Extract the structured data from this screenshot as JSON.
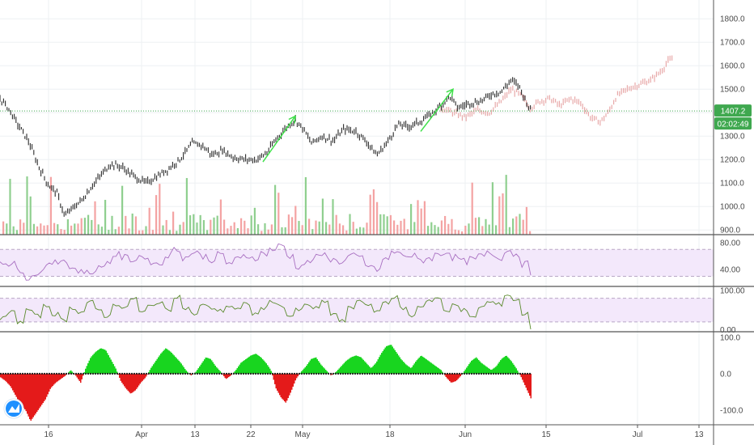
{
  "chart_data": [
    {
      "type": "candlestick",
      "panel": "price",
      "y_ticks": [
        "900.0",
        "1000.0",
        "1100.0",
        "1200.0",
        "1300.0",
        "1400.0",
        "1500.0",
        "1600.0",
        "1700.0",
        "1800.0"
      ],
      "ylim": [
        880,
        1880
      ],
      "last_price_label": "1407.2",
      "countdown_label": "02:02:49",
      "last_price": 1407.2,
      "price_path": [
        [
          0,
          1460
        ],
        [
          10,
          1420
        ],
        [
          22,
          1350
        ],
        [
          35,
          1280
        ],
        [
          48,
          1170
        ],
        [
          60,
          1090
        ],
        [
          70,
          1060
        ],
        [
          80,
          960
        ],
        [
          92,
          1000
        ],
        [
          102,
          1030
        ],
        [
          112,
          1080
        ],
        [
          124,
          1130
        ],
        [
          136,
          1180
        ],
        [
          150,
          1170
        ],
        [
          165,
          1130
        ],
        [
          180,
          1100
        ],
        [
          195,
          1130
        ],
        [
          208,
          1160
        ],
        [
          222,
          1200
        ],
        [
          238,
          1270
        ],
        [
          250,
          1260
        ],
        [
          262,
          1220
        ],
        [
          275,
          1240
        ],
        [
          288,
          1210
        ],
        [
          302,
          1200
        ],
        [
          318,
          1200
        ],
        [
          330,
          1230
        ],
        [
          342,
          1290
        ],
        [
          355,
          1340
        ],
        [
          365,
          1370
        ],
        [
          375,
          1330
        ],
        [
          385,
          1270
        ],
        [
          398,
          1300
        ],
        [
          412,
          1280
        ],
        [
          425,
          1330
        ],
        [
          440,
          1320
        ],
        [
          452,
          1280
        ],
        [
          466,
          1220
        ],
        [
          478,
          1270
        ],
        [
          492,
          1350
        ],
        [
          505,
          1340
        ],
        [
          518,
          1360
        ],
        [
          532,
          1390
        ],
        [
          545,
          1430
        ],
        [
          556,
          1470
        ],
        [
          566,
          1420
        ],
        [
          580,
          1440
        ],
        [
          595,
          1450
        ],
        [
          608,
          1480
        ],
        [
          620,
          1490
        ],
        [
          632,
          1540
        ],
        [
          642,
          1510
        ],
        [
          650,
          1450
        ],
        [
          656,
          1410
        ]
      ],
      "projection_path": [
        [
          545,
          1420
        ],
        [
          560,
          1400
        ],
        [
          575,
          1380
        ],
        [
          590,
          1410
        ],
        [
          605,
          1400
        ],
        [
          620,
          1450
        ],
        [
          632,
          1500
        ],
        [
          645,
          1470
        ],
        [
          655,
          1420
        ],
        [
          668,
          1450
        ],
        [
          680,
          1460
        ],
        [
          692,
          1430
        ],
        [
          705,
          1460
        ],
        [
          718,
          1440
        ],
        [
          730,
          1380
        ],
        [
          742,
          1360
        ],
        [
          752,
          1400
        ],
        [
          762,
          1470
        ],
        [
          775,
          1500
        ],
        [
          790,
          1520
        ],
        [
          805,
          1540
        ],
        [
          818,
          1580
        ],
        [
          826,
          1620
        ],
        [
          832,
          1630
        ]
      ],
      "trend_arrows": [
        {
          "from": [
            325,
            1190
          ],
          "to": [
            365,
            1385
          ]
        },
        {
          "from": [
            520,
            1320
          ],
          "to": [
            560,
            1500
          ]
        }
      ]
    },
    {
      "type": "bar",
      "panel": "volume",
      "note": "volume bars colored by candle direction"
    },
    {
      "type": "line",
      "panel": "rsi",
      "y_ticks": [
        "40.00",
        "80.00"
      ],
      "ylim": [
        15,
        92
      ],
      "band": [
        30,
        70
      ],
      "series": [
        {
          "color": "#a86fc1",
          "values": [
            52,
            48,
            40,
            28,
            35,
            45,
            50,
            55,
            42,
            38,
            35,
            42,
            50,
            62,
            58,
            55,
            60,
            52,
            48,
            62,
            70,
            58,
            66,
            60,
            55,
            62,
            50,
            55,
            60,
            58,
            64,
            70,
            75,
            60,
            45,
            50,
            58,
            62,
            54,
            52,
            60,
            58,
            46,
            40,
            55,
            66,
            62,
            60,
            54,
            57,
            62,
            66,
            58,
            52,
            55,
            60,
            64,
            58,
            68,
            63,
            48,
            35
          ]
        }
      ]
    },
    {
      "type": "line",
      "panel": "oscillator",
      "y_ticks": [
        "0.00",
        "100.00"
      ],
      "ylim": [
        -5,
        110
      ],
      "band": [
        20,
        80
      ],
      "series": [
        {
          "color": "#5a8a2c",
          "values": [
            30,
            45,
            20,
            50,
            35,
            60,
            40,
            25,
            55,
            45,
            70,
            50,
            35,
            65,
            55,
            80,
            45,
            60,
            70,
            50,
            85,
            55,
            40,
            62,
            55,
            48,
            60,
            52,
            65,
            40,
            55,
            72,
            60,
            35,
            50,
            62,
            55,
            70,
            40,
            22,
            55,
            75,
            60,
            48,
            70,
            82,
            55,
            35,
            60,
            75,
            80,
            45,
            65,
            50,
            30,
            58,
            70,
            64,
            88,
            75,
            40,
            5
          ]
        }
      ]
    },
    {
      "type": "bar",
      "panel": "histogram",
      "y_ticks": [
        "-100.0",
        "0.0",
        "100.0"
      ],
      "ylim": [
        -140,
        115
      ],
      "values": [
        -10,
        -20,
        -35,
        -60,
        -85,
        -100,
        -130,
        -110,
        -90,
        -70,
        -40,
        -25,
        -15,
        -5,
        10,
        -5,
        -25,
        15,
        45,
        60,
        70,
        65,
        40,
        15,
        -20,
        -40,
        -55,
        -45,
        -25,
        -10,
        15,
        35,
        55,
        70,
        60,
        45,
        30,
        10,
        -5,
        5,
        25,
        45,
        40,
        20,
        5,
        -15,
        -5,
        10,
        30,
        40,
        50,
        55,
        45,
        30,
        10,
        -40,
        -65,
        -80,
        -50,
        -15,
        5,
        20,
        40,
        45,
        25,
        10,
        -5,
        5,
        20,
        35,
        45,
        50,
        45,
        30,
        15,
        30,
        55,
        75,
        80,
        60,
        40,
        25,
        15,
        35,
        50,
        40,
        30,
        20,
        10,
        -10,
        -25,
        -20,
        -5,
        15,
        35,
        45,
        30,
        20,
        10,
        20,
        40,
        50,
        35,
        15,
        -10,
        -40,
        -70
      ]
    }
  ],
  "x_axis": {
    "labels": [
      "16",
      "Apr",
      "13",
      "22",
      "May",
      "18",
      "Jun",
      "15",
      "Jul",
      "13"
    ]
  },
  "colors": {
    "up": "#26a69a",
    "down": "#ef5350",
    "candle": "#2b2b2b",
    "projection": "#e8a9a9",
    "arrow": "#3fe04a",
    "tag_bg": "#3fa84f",
    "hist_pos": "#18d51f",
    "hist_neg": "#e41a1a",
    "band_fill": "#f3e8fb"
  },
  "logo_icon": "tradingview-logo-icon"
}
